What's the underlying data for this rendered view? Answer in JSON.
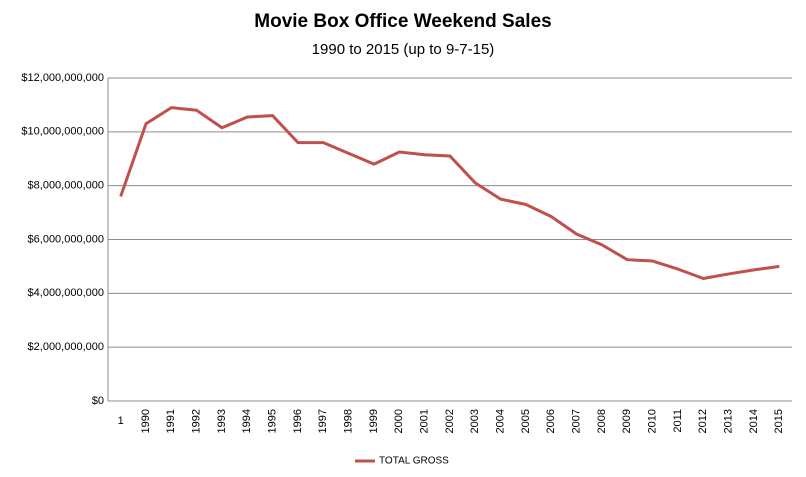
{
  "chart_data": {
    "type": "line",
    "title": "Movie Box Office Weekend Sales",
    "subtitle": "1990 to 2015 (up to 9-7-15)",
    "categories": [
      "1",
      "1990",
      "1991",
      "1992",
      "1993",
      "1994",
      "1995",
      "1996",
      "1997",
      "1998",
      "1999",
      "2000",
      "2001",
      "2002",
      "2003",
      "2004",
      "2005",
      "2006",
      "2007",
      "2008",
      "2009",
      "2010",
      "2011",
      "2012",
      "2013",
      "2014",
      "2015"
    ],
    "series": [
      {
        "name": "TOTAL GROSS",
        "color": "#c0504d",
        "values": [
          7600000000,
          10300000000,
          10900000000,
          10800000000,
          10150000000,
          10550000000,
          10600000000,
          9600000000,
          9600000000,
          9200000000,
          8800000000,
          9250000000,
          9150000000,
          9100000000,
          8100000000,
          7500000000,
          7300000000,
          6850000000,
          6200000000,
          5800000000,
          5250000000,
          5200000000,
          4900000000,
          4550000000,
          4720000000,
          4870000000,
          5000000000
        ]
      }
    ],
    "ylim": [
      0,
      12000000000
    ],
    "yticks": [
      {
        "value": 0,
        "label": "$0"
      },
      {
        "value": 2000000000,
        "label": "$2,000,000,000"
      },
      {
        "value": 4000000000,
        "label": "$4,000,000,000"
      },
      {
        "value": 6000000000,
        "label": "$6,000,000,000"
      },
      {
        "value": 8000000000,
        "label": "$8,000,000,000"
      },
      {
        "value": 10000000000,
        "label": "$10,000,000,000"
      },
      {
        "value": 12000000000,
        "label": "$12,000,000,000"
      }
    ],
    "grid": true,
    "legend": "bottom"
  }
}
